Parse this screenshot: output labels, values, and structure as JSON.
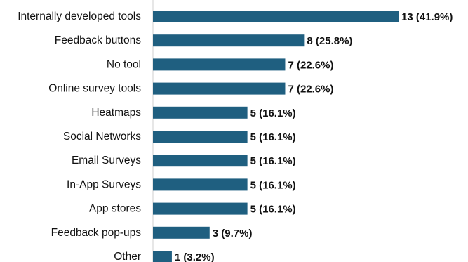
{
  "chart_data": {
    "type": "bar",
    "orientation": "horizontal",
    "categories": [
      "Internally developed tools",
      "Feedback buttons",
      "No tool",
      "Online survey tools",
      "Heatmaps",
      "Social Networks",
      "Email Surveys",
      "In-App Surveys",
      "App stores",
      "Feedback pop-ups",
      "Other"
    ],
    "values": [
      13,
      8,
      7,
      7,
      5,
      5,
      5,
      5,
      5,
      3,
      1
    ],
    "data_labels": [
      "13 (41.9%)",
      "8 (25.8%)",
      "7 (22.6%)",
      "7 (22.6%)",
      "5 (16.1%)",
      "5 (16.1%)",
      "5 (16.1%)",
      "5 (16.1%)",
      "5 (16.1%)",
      "3 (9.7%)",
      "1 (3.2%)"
    ],
    "title": "",
    "xlabel": "",
    "ylabel": "",
    "xlim": [
      0,
      13
    ],
    "grid": false,
    "legend": "none",
    "bar_color": "#1f5f80"
  }
}
